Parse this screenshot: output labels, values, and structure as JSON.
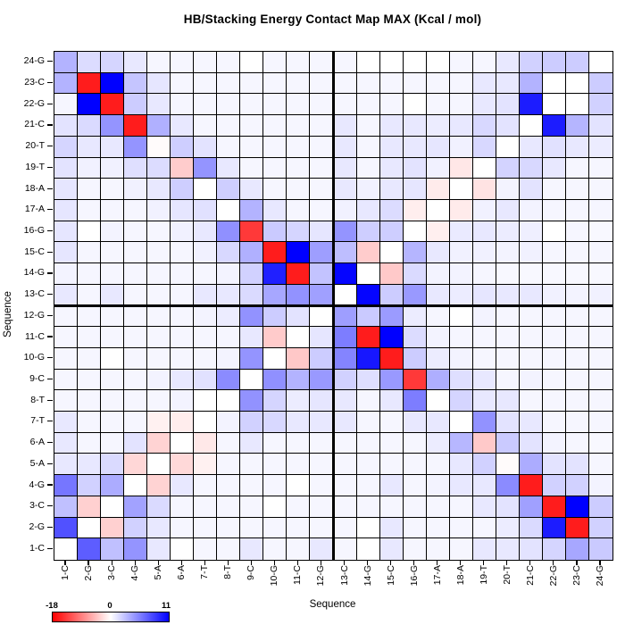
{
  "title": "HB/Stacking Energy Contact Map MAX (Kcal / mol)",
  "axes": {
    "x_title": "Sequence",
    "y_title": "Sequence"
  },
  "colorbar": {
    "min_label": "-18",
    "zero_label": "0",
    "max_label": "11",
    "left_color": "#ff0000",
    "mid_color": "#ffffff",
    "right_color": "#0000ff"
  },
  "chart_data": {
    "type": "heatmap",
    "title": "HB/Stacking Energy Contact Map MAX (Kcal / mol)",
    "xlabel": "Sequence",
    "ylabel": "Sequence",
    "value_range": [
      -18,
      11
    ],
    "colormap": {
      "negative": "#ff0000",
      "zero": "#ffffff",
      "positive": "#0000ff"
    },
    "quadrant_divider_after_index": 12,
    "col_labels_left_to_right": [
      "1-C",
      "2-G",
      "3-C",
      "4-G",
      "5-A",
      "6-A",
      "7-T",
      "8-T",
      "9-C",
      "10-G",
      "11-C",
      "12-G",
      "13-C",
      "14-G",
      "15-C",
      "16-G",
      "17-A",
      "18-A",
      "19-T",
      "20-T",
      "21-C",
      "22-G",
      "23-C",
      "24-G"
    ],
    "row_labels_top_to_bottom": [
      "24-G",
      "23-C",
      "22-G",
      "21-C",
      "20-T",
      "19-T",
      "18-A",
      "17-A",
      "16-G",
      "15-C",
      "14-G",
      "13-C",
      "12-G",
      "11-C",
      "10-G",
      "9-C",
      "8-T",
      "7-T",
      "6-A",
      "5-A",
      "4-G",
      "3-C",
      "2-G",
      "1-C"
    ],
    "values": [
      [
        3.3,
        1.5,
        1.8,
        1.0,
        0.4,
        0.4,
        0.4,
        0.4,
        0,
        0.4,
        0.4,
        0.4,
        0.4,
        0,
        0,
        0,
        0,
        0.4,
        0.4,
        1.0,
        2.0,
        2.2,
        2.2,
        0
      ],
      [
        3.3,
        -16,
        11,
        2.5,
        1.1,
        0.4,
        0.4,
        0.4,
        0.4,
        0.4,
        0.4,
        0.4,
        0.4,
        0.4,
        0.4,
        0.4,
        0.4,
        0.4,
        1.0,
        1.0,
        3.3,
        0,
        0,
        2.2
      ],
      [
        0.4,
        11,
        -16,
        2.2,
        1.0,
        0.4,
        0.4,
        0.4,
        0.4,
        0.4,
        0.4,
        0.4,
        0.4,
        0.4,
        0.4,
        0,
        0.4,
        0.4,
        1.0,
        1.2,
        9.8,
        0,
        0,
        2.0
      ],
      [
        1.2,
        1.6,
        4.6,
        -16,
        3.4,
        1.0,
        0.4,
        0.4,
        0.4,
        0.4,
        0.4,
        0.4,
        1.0,
        0.4,
        1.0,
        1.0,
        0.8,
        1.0,
        1.7,
        1.2,
        0,
        9.8,
        3.2,
        1.2
      ],
      [
        1.8,
        1.0,
        1.0,
        4.6,
        -0.3,
        2.1,
        1.2,
        0.4,
        0.4,
        0.4,
        0.4,
        0.4,
        1.0,
        0.4,
        1.0,
        1.0,
        1.1,
        0.6,
        1.7,
        0,
        1.0,
        1.3,
        1.0,
        0.8
      ],
      [
        1.2,
        0.6,
        0.6,
        1.4,
        1.5,
        -3.6,
        4.6,
        1.0,
        0.4,
        0.4,
        0.4,
        0.4,
        1.0,
        0.4,
        1.0,
        1.2,
        0.6,
        -1.7,
        0,
        1.9,
        1.7,
        1.0,
        0.4,
        0.4
      ],
      [
        1.1,
        0.4,
        0.4,
        0.6,
        1.0,
        2.1,
        0,
        2.1,
        1.0,
        0.4,
        0.4,
        0.4,
        1.0,
        0.6,
        1.0,
        1.1,
        -1.4,
        0,
        -2.0,
        0.5,
        1.2,
        0.4,
        0.4,
        0.4
      ],
      [
        1.1,
        0.4,
        0.4,
        0.4,
        0.6,
        1.1,
        1.3,
        0,
        3.3,
        1.0,
        0.4,
        0.4,
        0.6,
        1.0,
        1.5,
        -1.2,
        0,
        -1.4,
        0.6,
        1.0,
        0.5,
        0.4,
        0.4,
        0.4
      ],
      [
        1.1,
        0,
        0.5,
        0.4,
        0.4,
        0.6,
        1.0,
        4.8,
        -14,
        2.3,
        1.8,
        1.1,
        4.6,
        2.1,
        2.1,
        0,
        -1.1,
        0.9,
        1.0,
        0.8,
        0.7,
        0,
        0.4,
        0.3
      ],
      [
        1.1,
        0.4,
        0.4,
        0.4,
        0.4,
        0.4,
        0.6,
        1.7,
        3.4,
        -16,
        11,
        4.2,
        2.8,
        -3.6,
        0,
        3.2,
        1.0,
        0.6,
        0.6,
        0.5,
        0.6,
        0.4,
        0.4,
        0.4
      ],
      [
        0.5,
        0.4,
        0.4,
        0.4,
        0.4,
        0.4,
        0.4,
        0.5,
        2.0,
        9.6,
        -16,
        2.6,
        10.8,
        0,
        -3.8,
        1.6,
        0.5,
        0.5,
        0.4,
        0.3,
        0.3,
        0.3,
        0.3,
        0.3
      ],
      [
        1.0,
        0.4,
        1.0,
        0.4,
        0.4,
        0.4,
        1.0,
        1.0,
        1.6,
        3.8,
        4.7,
        4.1,
        0,
        10.8,
        2.2,
        4.4,
        1.0,
        0.8,
        1.1,
        1.0,
        1.0,
        0.6,
        0.5,
        0.6
      ],
      [
        0.4,
        0.4,
        0.4,
        0.4,
        0.4,
        0.4,
        0.5,
        0.8,
        4.7,
        2.2,
        1.2,
        0,
        4.2,
        2.3,
        4.3,
        0.8,
        0.4,
        0,
        0.5,
        0.4,
        0.4,
        0.4,
        0.4,
        0.4
      ],
      [
        0.4,
        0.4,
        0.4,
        0.4,
        0.4,
        0.4,
        0.4,
        0.4,
        1.0,
        -3.7,
        0,
        1.1,
        5.6,
        -16,
        11,
        1.5,
        0.5,
        0.4,
        0.4,
        0.4,
        0.4,
        0.4,
        0.4,
        0.4
      ],
      [
        0.4,
        0.4,
        0,
        0.4,
        0.4,
        0.4,
        0.4,
        0.5,
        4.6,
        0,
        -3.9,
        2.2,
        5.3,
        10,
        -16,
        2.2,
        0.8,
        0.5,
        0.4,
        0.4,
        0.4,
        0.4,
        0.4,
        0.4
      ],
      [
        0.4,
        0.4,
        0.4,
        0.4,
        0.5,
        1.0,
        1.3,
        5.0,
        0,
        4.8,
        3.3,
        4.4,
        2.0,
        1.4,
        4.4,
        -14,
        3.5,
        1.4,
        1.0,
        0.4,
        0.5,
        0.4,
        0.4,
        0.4
      ],
      [
        0.4,
        0.4,
        0.4,
        0.4,
        0.4,
        0.5,
        0,
        0,
        4.7,
        1.8,
        0.8,
        1.1,
        1.0,
        0.4,
        1.0,
        5.6,
        0,
        1.8,
        1.0,
        1.0,
        0.4,
        0.4,
        0.4,
        0.4
      ],
      [
        1.0,
        0.4,
        0.4,
        0.4,
        -1.0,
        -1.3,
        0,
        0.5,
        2.0,
        1.7,
        1.0,
        1.0,
        1.0,
        0.4,
        0.4,
        1.0,
        1.0,
        0,
        4.7,
        1.2,
        1.0,
        0.4,
        0.4,
        0.4
      ],
      [
        1.0,
        0.4,
        0.4,
        1.2,
        -3.1,
        0,
        -1.6,
        0.4,
        1.0,
        0.4,
        0.4,
        0.4,
        0.4,
        0.4,
        0.4,
        0.4,
        0.8,
        3.1,
        -3.8,
        2.3,
        1.2,
        0.5,
        0.4,
        0.3
      ],
      [
        1.0,
        1.0,
        1.6,
        -2.8,
        0,
        -2.7,
        -1.0,
        0.4,
        0.4,
        0.4,
        0.4,
        0.4,
        0.4,
        0.4,
        0.4,
        0.4,
        0.4,
        1.0,
        2.0,
        -0.3,
        3.6,
        1.2,
        1.2,
        0.4
      ],
      [
        5.9,
        2.0,
        3.6,
        0,
        -3.1,
        1.0,
        0.4,
        0.4,
        0.4,
        0.4,
        0,
        0.4,
        0.4,
        0.4,
        1.0,
        0.4,
        0.5,
        1.0,
        1.0,
        5.0,
        -16,
        2.0,
        2.0,
        0.5
      ],
      [
        2.7,
        -3.3,
        0,
        4.0,
        1.6,
        0.4,
        0.4,
        0.4,
        0.4,
        0,
        0.4,
        0.4,
        0.4,
        0.4,
        0.4,
        0.4,
        0.4,
        0.4,
        1.0,
        1.2,
        4.1,
        -16,
        11,
        2.2
      ],
      [
        7.5,
        0,
        -3.3,
        2.0,
        1.0,
        0.4,
        0.4,
        0.4,
        0.4,
        0.4,
        0.4,
        0.4,
        0.4,
        0,
        1.0,
        0.4,
        0.4,
        0.4,
        0.4,
        0.8,
        1.6,
        9.8,
        -16,
        2.0
      ],
      [
        0,
        7.0,
        2.7,
        4.6,
        1.0,
        0,
        0.4,
        0.4,
        1.0,
        0.4,
        0.4,
        1.0,
        0.4,
        0,
        1.0,
        0.4,
        0.4,
        0.4,
        1.0,
        1.0,
        1.2,
        1.8,
        3.8,
        2.3
      ]
    ]
  }
}
